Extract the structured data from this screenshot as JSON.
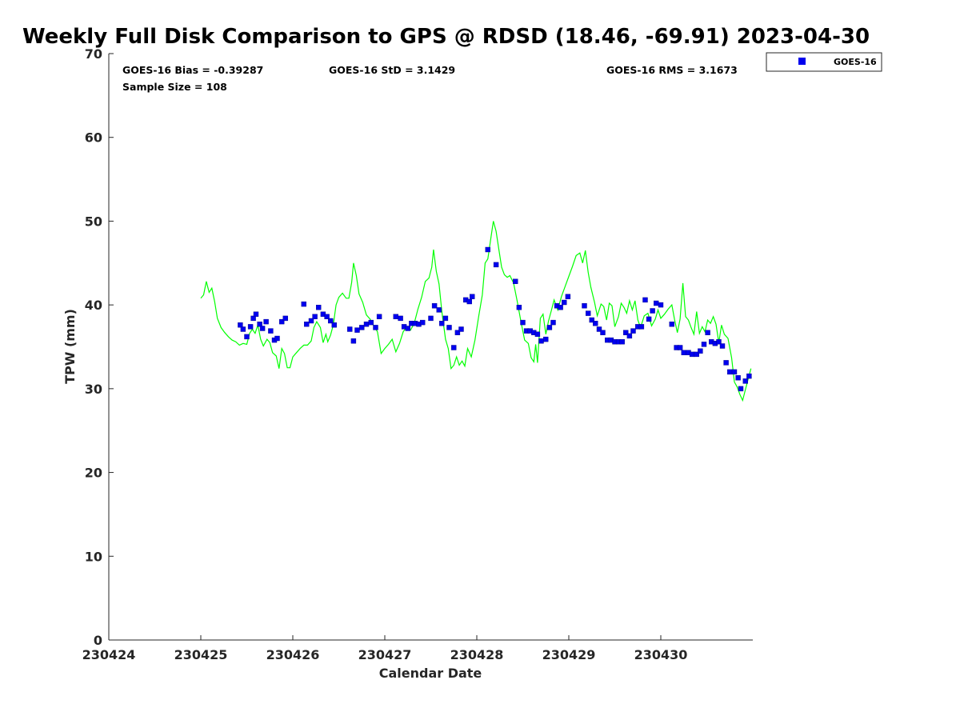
{
  "chart_data": {
    "type": "scatter",
    "title": "Weekly Full Disk Comparison to GPS @ RDSD (18.46, -69.91) 2023-04-30",
    "xlabel": "Calendar Date",
    "ylabel": "TPW (mm)",
    "xlim": [
      0,
      7
    ],
    "ylim": [
      0,
      70
    ],
    "x_ticks": [
      0,
      1,
      2,
      3,
      4,
      5,
      6
    ],
    "x_tick_labels": [
      "230424",
      "230425",
      "230426",
      "230427",
      "230428",
      "230429",
      "230430"
    ],
    "y_ticks": [
      0,
      10,
      20,
      30,
      40,
      50,
      60,
      70
    ],
    "y_tick_labels": [
      "0",
      "10",
      "20",
      "30",
      "40",
      "50",
      "60",
      "70"
    ],
    "stats": {
      "bias": "GOES-16 Bias = -0.39287",
      "std": "GOES-16 StD = 3.1429",
      "rms": "GOES-16 RMS = 3.1673",
      "sample_size": "Sample Size = 108"
    },
    "legend": [
      {
        "name": "GOES-16",
        "color": "#0000ee",
        "marker": "square",
        "placement": "top-right outside"
      }
    ],
    "colors": {
      "goes": "#0000ee",
      "gps": "#00ff00",
      "axis": "#262626"
    },
    "series": [
      {
        "name": "GOES-16",
        "kind": "points",
        "points": [
          [
            1.43,
            37.6
          ],
          [
            1.46,
            37.1
          ],
          [
            1.5,
            36.2
          ],
          [
            1.54,
            37.4
          ],
          [
            1.57,
            38.4
          ],
          [
            1.6,
            38.9
          ],
          [
            1.64,
            37.7
          ],
          [
            1.67,
            37.2
          ],
          [
            1.71,
            38.0
          ],
          [
            1.76,
            36.9
          ],
          [
            1.8,
            35.8
          ],
          [
            1.83,
            36.0
          ],
          [
            1.88,
            38.0
          ],
          [
            1.92,
            38.4
          ],
          [
            2.12,
            40.1
          ],
          [
            2.15,
            37.7
          ],
          [
            2.2,
            38.1
          ],
          [
            2.24,
            38.6
          ],
          [
            2.28,
            39.7
          ],
          [
            2.33,
            38.9
          ],
          [
            2.37,
            38.6
          ],
          [
            2.41,
            38.1
          ],
          [
            2.45,
            37.6
          ],
          [
            2.62,
            37.1
          ],
          [
            2.66,
            35.7
          ],
          [
            2.7,
            37.0
          ],
          [
            2.75,
            37.3
          ],
          [
            2.8,
            37.7
          ],
          [
            2.85,
            37.9
          ],
          [
            2.9,
            37.3
          ],
          [
            2.94,
            38.6
          ],
          [
            3.12,
            38.6
          ],
          [
            3.17,
            38.4
          ],
          [
            3.21,
            37.4
          ],
          [
            3.25,
            37.2
          ],
          [
            3.29,
            37.8
          ],
          [
            3.33,
            37.8
          ],
          [
            3.37,
            37.7
          ],
          [
            3.41,
            37.9
          ],
          [
            3.5,
            38.4
          ],
          [
            3.54,
            39.9
          ],
          [
            3.59,
            39.4
          ],
          [
            3.62,
            37.8
          ],
          [
            3.66,
            38.4
          ],
          [
            3.7,
            37.3
          ],
          [
            3.75,
            34.9
          ],
          [
            3.79,
            36.7
          ],
          [
            3.83,
            37.1
          ],
          [
            3.88,
            40.6
          ],
          [
            3.92,
            40.4
          ],
          [
            3.95,
            41.0
          ],
          [
            4.12,
            46.6
          ],
          [
            4.21,
            44.8
          ],
          [
            4.42,
            42.8
          ],
          [
            4.46,
            39.7
          ],
          [
            4.5,
            37.9
          ],
          [
            4.54,
            36.9
          ],
          [
            4.58,
            36.9
          ],
          [
            4.62,
            36.7
          ],
          [
            4.66,
            36.5
          ],
          [
            4.7,
            35.7
          ],
          [
            4.75,
            35.9
          ],
          [
            4.79,
            37.3
          ],
          [
            4.83,
            37.9
          ],
          [
            4.87,
            39.9
          ],
          [
            4.91,
            39.7
          ],
          [
            4.95,
            40.3
          ],
          [
            4.99,
            41.0
          ],
          [
            5.17,
            39.9
          ],
          [
            5.21,
            39.0
          ],
          [
            5.25,
            38.2
          ],
          [
            5.29,
            37.8
          ],
          [
            5.33,
            37.1
          ],
          [
            5.37,
            36.7
          ],
          [
            5.42,
            35.8
          ],
          [
            5.46,
            35.8
          ],
          [
            5.5,
            35.6
          ],
          [
            5.54,
            35.6
          ],
          [
            5.58,
            35.6
          ],
          [
            5.62,
            36.7
          ],
          [
            5.66,
            36.3
          ],
          [
            5.7,
            36.9
          ],
          [
            5.75,
            37.4
          ],
          [
            5.79,
            37.4
          ],
          [
            5.83,
            40.6
          ],
          [
            5.87,
            38.3
          ],
          [
            5.91,
            39.3
          ],
          [
            5.95,
            40.2
          ],
          [
            6.0,
            40.0
          ],
          [
            6.12,
            37.7
          ],
          [
            6.17,
            34.9
          ],
          [
            6.21,
            34.9
          ],
          [
            6.25,
            34.3
          ],
          [
            6.3,
            34.3
          ],
          [
            6.34,
            34.1
          ],
          [
            6.39,
            34.1
          ],
          [
            6.43,
            34.5
          ],
          [
            6.47,
            35.3
          ],
          [
            6.51,
            36.7
          ],
          [
            6.55,
            35.6
          ],
          [
            6.59,
            35.4
          ],
          [
            6.63,
            35.6
          ],
          [
            6.67,
            35.1
          ],
          [
            6.71,
            33.1
          ],
          [
            6.75,
            32.0
          ],
          [
            6.8,
            32.0
          ],
          [
            6.84,
            31.3
          ],
          [
            6.87,
            30.0
          ],
          [
            6.92,
            30.9
          ],
          [
            6.96,
            31.5
          ]
        ]
      },
      {
        "name": "GPS",
        "kind": "line",
        "points": [
          [
            1.0,
            40.8
          ],
          [
            1.03,
            41.2
          ],
          [
            1.06,
            42.8
          ],
          [
            1.09,
            41.5
          ],
          [
            1.12,
            42.0
          ],
          [
            1.15,
            40.4
          ],
          [
            1.18,
            38.4
          ],
          [
            1.22,
            37.3
          ],
          [
            1.26,
            36.7
          ],
          [
            1.3,
            36.2
          ],
          [
            1.34,
            35.8
          ],
          [
            1.38,
            35.6
          ],
          [
            1.42,
            35.2
          ],
          [
            1.46,
            35.4
          ],
          [
            1.5,
            35.3
          ],
          [
            1.53,
            36.6
          ],
          [
            1.56,
            37.1
          ],
          [
            1.59,
            36.6
          ],
          [
            1.62,
            37.6
          ],
          [
            1.65,
            35.9
          ],
          [
            1.68,
            35.1
          ],
          [
            1.72,
            35.9
          ],
          [
            1.75,
            35.5
          ],
          [
            1.78,
            34.3
          ],
          [
            1.82,
            33.9
          ],
          [
            1.85,
            32.4
          ],
          [
            1.88,
            34.8
          ],
          [
            1.91,
            34.2
          ],
          [
            1.94,
            32.5
          ],
          [
            1.97,
            32.5
          ],
          [
            2.0,
            33.8
          ],
          [
            2.04,
            34.3
          ],
          [
            2.08,
            34.8
          ],
          [
            2.12,
            35.2
          ],
          [
            2.16,
            35.2
          ],
          [
            2.2,
            35.7
          ],
          [
            2.23,
            37.3
          ],
          [
            2.26,
            38.0
          ],
          [
            2.3,
            37.3
          ],
          [
            2.33,
            35.5
          ],
          [
            2.36,
            36.5
          ],
          [
            2.38,
            35.6
          ],
          [
            2.41,
            36.4
          ],
          [
            2.44,
            37.6
          ],
          [
            2.47,
            40.0
          ],
          [
            2.5,
            40.9
          ],
          [
            2.54,
            41.4
          ],
          [
            2.58,
            40.8
          ],
          [
            2.61,
            40.8
          ],
          [
            2.64,
            42.7
          ],
          [
            2.66,
            45.0
          ],
          [
            2.69,
            43.5
          ],
          [
            2.72,
            41.3
          ],
          [
            2.76,
            40.3
          ],
          [
            2.8,
            38.8
          ],
          [
            2.84,
            38.3
          ],
          [
            2.88,
            37.5
          ],
          [
            2.92,
            36.8
          ],
          [
            2.96,
            34.2
          ],
          [
            3.0,
            34.8
          ],
          [
            3.04,
            35.3
          ],
          [
            3.08,
            35.9
          ],
          [
            3.12,
            34.4
          ],
          [
            3.16,
            35.4
          ],
          [
            3.2,
            36.8
          ],
          [
            3.24,
            37.4
          ],
          [
            3.28,
            37.0
          ],
          [
            3.32,
            37.8
          ],
          [
            3.36,
            39.5
          ],
          [
            3.4,
            40.9
          ],
          [
            3.44,
            42.8
          ],
          [
            3.48,
            43.2
          ],
          [
            3.51,
            44.5
          ],
          [
            3.53,
            46.6
          ],
          [
            3.56,
            44.0
          ],
          [
            3.59,
            42.5
          ],
          [
            3.62,
            39.2
          ],
          [
            3.66,
            35.9
          ],
          [
            3.69,
            34.8
          ],
          [
            3.72,
            32.4
          ],
          [
            3.75,
            32.8
          ],
          [
            3.78,
            33.8
          ],
          [
            3.81,
            32.8
          ],
          [
            3.84,
            33.3
          ],
          [
            3.87,
            32.7
          ],
          [
            3.9,
            34.8
          ],
          [
            3.94,
            33.8
          ],
          [
            3.98,
            35.8
          ],
          [
            4.02,
            38.6
          ],
          [
            4.06,
            41.2
          ],
          [
            4.09,
            45.0
          ],
          [
            4.12,
            45.5
          ],
          [
            4.15,
            47.8
          ],
          [
            4.18,
            50.0
          ],
          [
            4.21,
            48.8
          ],
          [
            4.24,
            46.6
          ],
          [
            4.27,
            44.5
          ],
          [
            4.3,
            43.6
          ],
          [
            4.33,
            43.3
          ],
          [
            4.36,
            43.5
          ],
          [
            4.4,
            42.6
          ],
          [
            4.44,
            40.4
          ],
          [
            4.48,
            38.0
          ],
          [
            4.52,
            35.8
          ],
          [
            4.56,
            35.4
          ],
          [
            4.59,
            33.7
          ],
          [
            4.62,
            33.2
          ],
          [
            4.64,
            35.3
          ],
          [
            4.66,
            33.1
          ],
          [
            4.69,
            38.4
          ],
          [
            4.72,
            38.9
          ],
          [
            4.75,
            36.5
          ],
          [
            4.78,
            38.1
          ],
          [
            4.81,
            39.3
          ],
          [
            4.84,
            40.6
          ],
          [
            4.88,
            39.4
          ],
          [
            4.92,
            41.0
          ],
          [
            4.96,
            42.2
          ],
          [
            5.0,
            43.4
          ],
          [
            5.04,
            44.6
          ],
          [
            5.08,
            45.9
          ],
          [
            5.12,
            46.2
          ],
          [
            5.15,
            45.0
          ],
          [
            5.18,
            46.5
          ],
          [
            5.21,
            43.9
          ],
          [
            5.24,
            42.1
          ],
          [
            5.28,
            40.3
          ],
          [
            5.31,
            38.7
          ],
          [
            5.35,
            40.1
          ],
          [
            5.38,
            39.8
          ],
          [
            5.41,
            38.2
          ],
          [
            5.44,
            40.2
          ],
          [
            5.47,
            39.9
          ],
          [
            5.5,
            37.4
          ],
          [
            5.54,
            38.6
          ],
          [
            5.57,
            40.2
          ],
          [
            5.6,
            39.7
          ],
          [
            5.63,
            39.0
          ],
          [
            5.66,
            40.5
          ],
          [
            5.69,
            39.4
          ],
          [
            5.72,
            40.5
          ],
          [
            5.75,
            38.2
          ],
          [
            5.78,
            37.3
          ],
          [
            5.82,
            38.7
          ],
          [
            5.86,
            39.0
          ],
          [
            5.9,
            37.5
          ],
          [
            5.94,
            38.3
          ],
          [
            5.97,
            39.4
          ],
          [
            6.0,
            38.4
          ],
          [
            6.04,
            38.9
          ],
          [
            6.08,
            39.5
          ],
          [
            6.12,
            40.0
          ],
          [
            6.15,
            38.2
          ],
          [
            6.18,
            36.7
          ],
          [
            6.21,
            38.3
          ],
          [
            6.24,
            42.6
          ],
          [
            6.27,
            38.6
          ],
          [
            6.3,
            38.2
          ],
          [
            6.33,
            37.3
          ],
          [
            6.36,
            36.5
          ],
          [
            6.39,
            39.2
          ],
          [
            6.42,
            36.6
          ],
          [
            6.45,
            37.4
          ],
          [
            6.48,
            36.8
          ],
          [
            6.51,
            38.2
          ],
          [
            6.54,
            37.8
          ],
          [
            6.57,
            38.6
          ],
          [
            6.6,
            37.7
          ],
          [
            6.63,
            35.5
          ],
          [
            6.66,
            37.6
          ],
          [
            6.69,
            36.5
          ],
          [
            6.73,
            36.0
          ],
          [
            6.77,
            33.7
          ],
          [
            6.8,
            30.8
          ],
          [
            6.83,
            30.2
          ],
          [
            6.86,
            29.3
          ],
          [
            6.89,
            28.6
          ],
          [
            6.92,
            29.9
          ],
          [
            6.95,
            31.2
          ],
          [
            6.98,
            32.4
          ]
        ]
      }
    ]
  }
}
